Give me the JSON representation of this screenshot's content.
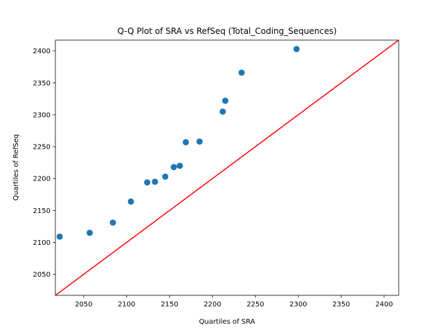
{
  "chart_data": {
    "type": "scatter",
    "title": "Q-Q Plot of SRA vs RefSeq (Total_Coding_Sequences)",
    "xlabel": "Quartiles of SRA",
    "ylabel": "Quartiles of RefSeq",
    "xlim": [
      2017,
      2417
    ],
    "ylim": [
      2017,
      2417
    ],
    "xticks": [
      2050,
      2100,
      2150,
      2200,
      2250,
      2300,
      2350,
      2400
    ],
    "yticks": [
      2050,
      2100,
      2150,
      2200,
      2250,
      2300,
      2350,
      2400
    ],
    "grid": false,
    "points": [
      {
        "x": 2022,
        "y": 2109
      },
      {
        "x": 2057,
        "y": 2115
      },
      {
        "x": 2084,
        "y": 2131
      },
      {
        "x": 2105,
        "y": 2164
      },
      {
        "x": 2124,
        "y": 2194
      },
      {
        "x": 2133,
        "y": 2195
      },
      {
        "x": 2145,
        "y": 2203
      },
      {
        "x": 2155,
        "y": 2218
      },
      {
        "x": 2162,
        "y": 2220
      },
      {
        "x": 2169,
        "y": 2257
      },
      {
        "x": 2185,
        "y": 2258
      },
      {
        "x": 2212,
        "y": 2305
      },
      {
        "x": 2215,
        "y": 2322
      },
      {
        "x": 2234,
        "y": 2366
      },
      {
        "x": 2298,
        "y": 2403
      }
    ],
    "reference_line": {
      "from": [
        2017,
        2017
      ],
      "to": [
        2417,
        2417
      ]
    },
    "colors": {
      "points": "#1f77b4",
      "reference_line": "#ff0000"
    }
  }
}
